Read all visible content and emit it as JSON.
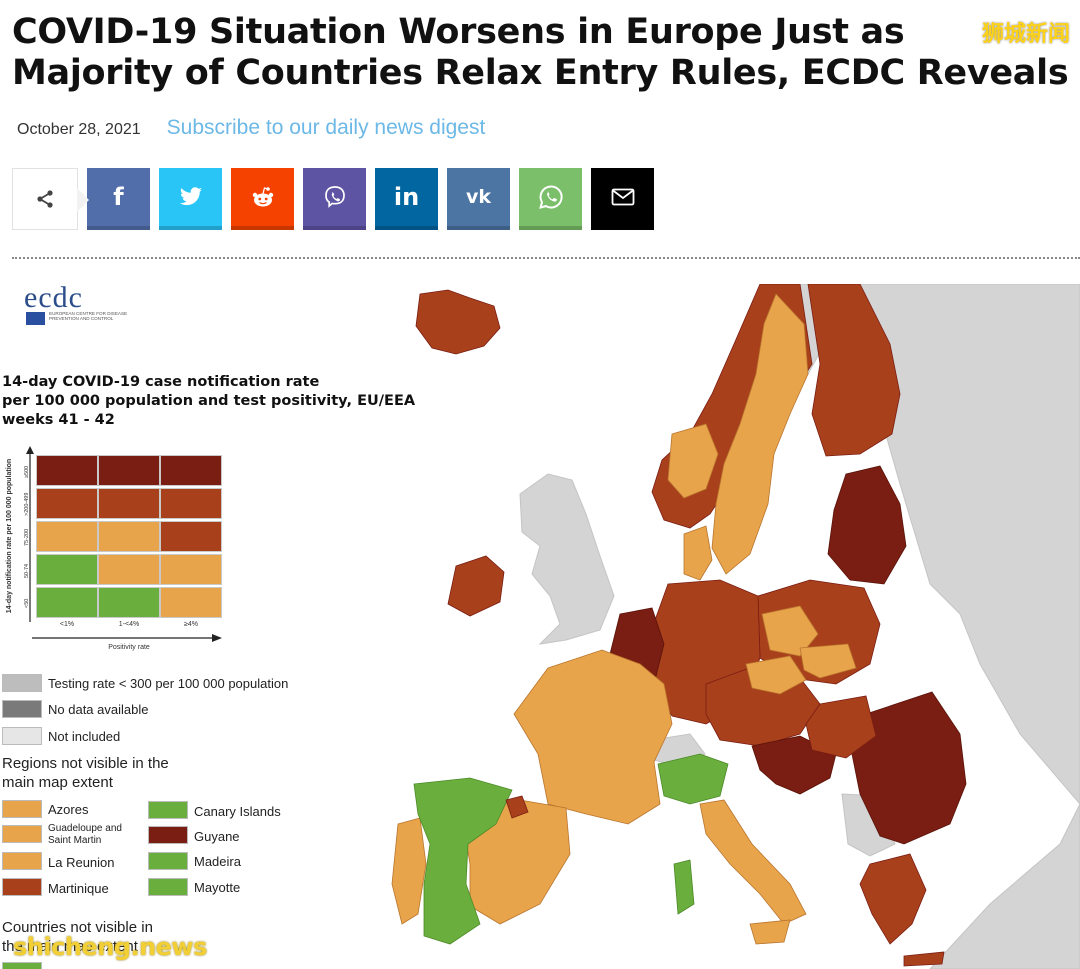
{
  "article": {
    "title": "COVID-19 Situation Worsens in Europe Just as Majority of Countries Relax Entry Rules, ECDC Reveals",
    "date": "October 28, 2021",
    "subscribe_link": "Subscribe to our daily news digest"
  },
  "watermarks": {
    "top_right": "狮城新闻",
    "bottom_left": "shicheng.news"
  },
  "share_bar": {
    "buttons": [
      {
        "icon": "facebook-icon",
        "glyph": "f",
        "color": "#516eab"
      },
      {
        "icon": "twitter-icon",
        "glyph": "🐦",
        "color": "#29c5f6"
      },
      {
        "icon": "reddit-icon",
        "glyph": "👽",
        "color": "#f54200"
      },
      {
        "icon": "viber-icon",
        "glyph": "✆",
        "color": "#5d54a4"
      },
      {
        "icon": "linkedin-icon",
        "glyph": "in",
        "color": "#0266a0"
      },
      {
        "icon": "vk-icon",
        "glyph": "vk",
        "color": "#4c75a3"
      },
      {
        "icon": "whatsapp-icon",
        "glyph": "✆",
        "color": "#7bbf6a"
      },
      {
        "icon": "email-icon",
        "glyph": "✉",
        "color": "#000000"
      }
    ]
  },
  "map": {
    "logo_text": "ecdc",
    "logo_caption": "EUROPEAN CENTRE FOR DISEASE PREVENTION AND CONTROL",
    "legend_title_lines": [
      "14-day COVID-19 case notification rate",
      "per 100 000 population and test positivity, EU/EEA",
      "weeks 41 - 42"
    ],
    "y_axis_label": "14-day notification rate per 100 000 population",
    "row_labels": [
      "≥500",
      ">200-499",
      "75-200",
      "50-74",
      "<50"
    ],
    "col_labels": [
      "<1%",
      "1-<4%",
      "≥4%"
    ],
    "x_axis_label": "Positivity rate",
    "grid_colors": [
      [
        "#7a1d12",
        "#7a1d12",
        "#7a1d12"
      ],
      [
        "#a9401c",
        "#a9401c",
        "#a9401c"
      ],
      [
        "#e8a44a",
        "#e8a44a",
        "#a9401c"
      ],
      [
        "#6aaf3d",
        "#e8a44a",
        "#e8a44a"
      ],
      [
        "#6aaf3d",
        "#6aaf3d",
        "#e8a44a"
      ]
    ],
    "status_legend": [
      {
        "label": "Testing rate < 300 per 100 000 population",
        "color": "#bdbdbd"
      },
      {
        "label": "No data available",
        "color": "#7a7a7a"
      },
      {
        "label": "Not included",
        "color": "#e6e6e6"
      }
    ],
    "regions_heading": "Regions not visible in the main map extent",
    "regions": [
      {
        "label": "Azores",
        "color": "#e8a44a"
      },
      {
        "label": "Guadeloupe and Saint Martin",
        "color": "#e8a44a"
      },
      {
        "label": "La Reunion",
        "color": "#e8a44a"
      },
      {
        "label": "Martinique",
        "color": "#a9401c"
      },
      {
        "label": "Canary Islands",
        "color": "#6aaf3d"
      },
      {
        "label": "Guyane",
        "color": "#7a1d12"
      },
      {
        "label": "Madeira",
        "color": "#6aaf3d"
      },
      {
        "label": "Mayotte",
        "color": "#6aaf3d"
      }
    ],
    "countries_heading": "Countries not visible in the main map extent"
  },
  "colors": {
    "dark_red": "#7a1d12",
    "red_brown": "#a9401c",
    "orange": "#e8a44a",
    "green": "#6aaf3d",
    "grey_land": "#d4d4d4",
    "sea": "#ffffff"
  }
}
